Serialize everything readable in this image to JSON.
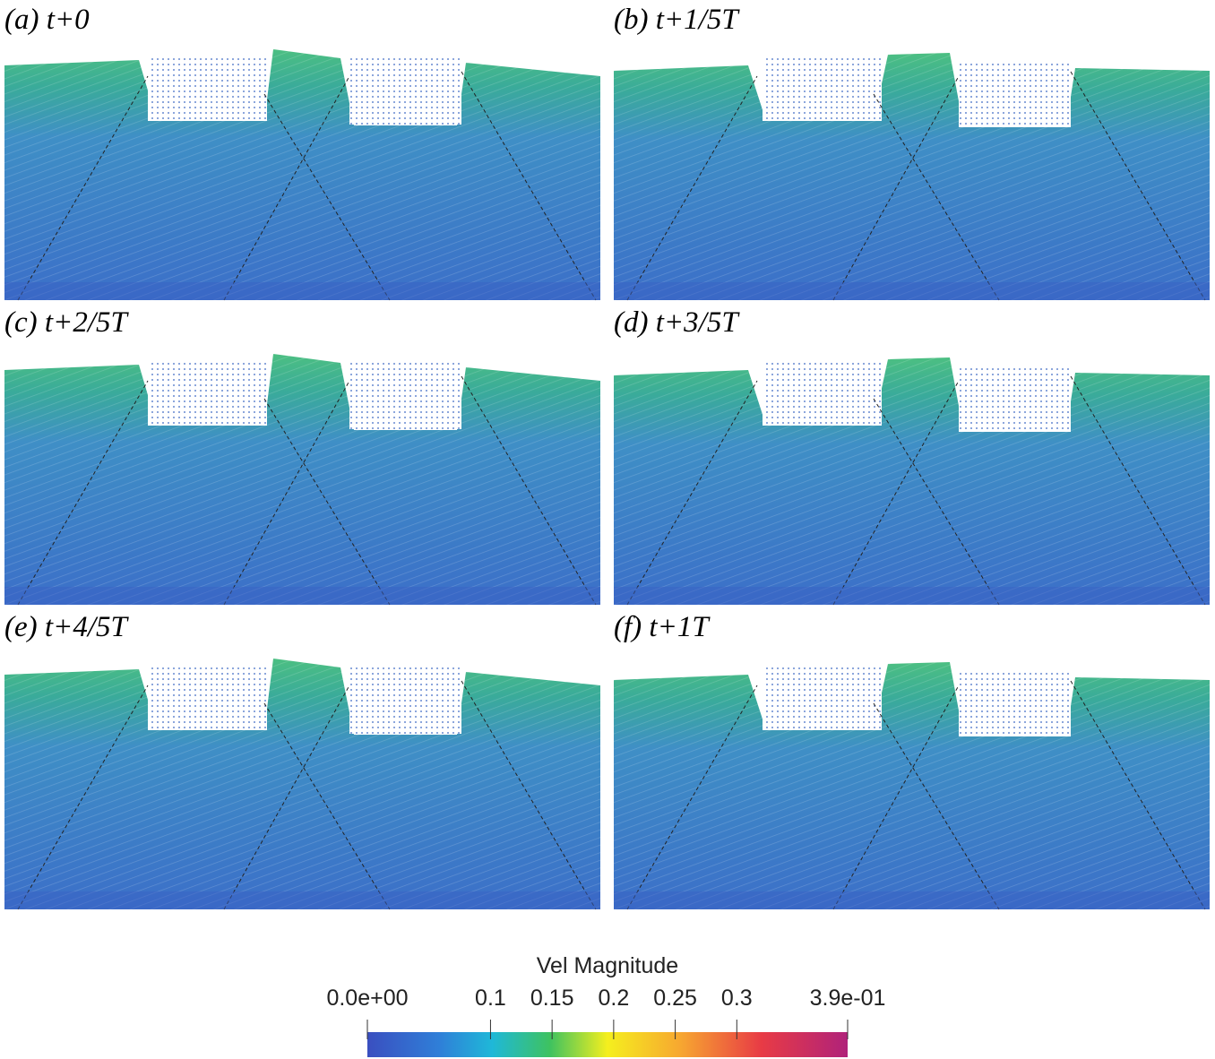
{
  "panels": [
    {
      "label": "(a) t+0"
    },
    {
      "label": "(b) t+1/5T"
    },
    {
      "label": "(c) t+2/5T"
    },
    {
      "label": "(d) t+3/5T"
    },
    {
      "label": "(e) t+4/5T"
    },
    {
      "label": "(f) t+1T"
    }
  ],
  "colorbar": {
    "title": "Vel Magnitude",
    "lim": [
      0,
      0.39
    ],
    "ticks": [
      {
        "value": 0,
        "label": "0.0e+00"
      },
      0.1,
      0.15,
      0.2,
      0.25,
      0.3,
      {
        "value": 0.39,
        "label": "3.9e-01"
      }
    ]
  }
}
